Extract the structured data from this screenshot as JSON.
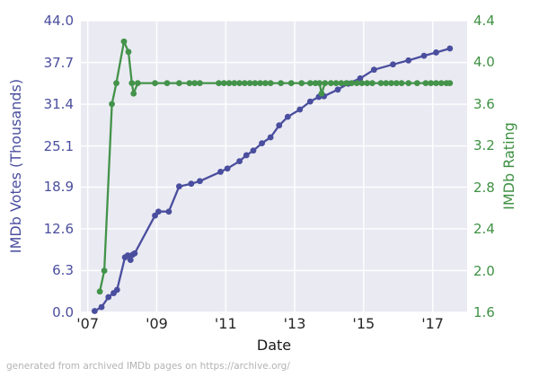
{
  "caption": "generated from archived IMDb pages on https://archive.org/",
  "chart_data": {
    "type": "line",
    "xlabel": "Date",
    "ylabel_left": "IMDb Votes (Thousands)",
    "ylabel_right": "IMDb Rating",
    "grid": true,
    "legend": "none",
    "plot_bg": "#eaeaf2",
    "grid_color": "#ffffff",
    "x_range": [
      2006.8,
      2018.0
    ],
    "x_tick_labels": [
      "'07",
      "'09",
      "'11",
      "'13",
      "'15",
      "'17"
    ],
    "x_tick_values": [
      2007,
      2009,
      2011,
      2013,
      2015,
      2017
    ],
    "left_axis": {
      "range": [
        0.0,
        44.0
      ],
      "tick_labels": [
        "0.0",
        "6.3",
        "12.6",
        "18.9",
        "25.1",
        "31.4",
        "37.7",
        "44.0"
      ],
      "tick_values": [
        0.0,
        6.3,
        12.6,
        18.9,
        25.1,
        31.4,
        37.7,
        44.0
      ],
      "color": "#4a4e9e"
    },
    "right_axis": {
      "range": [
        1.6,
        4.4
      ],
      "tick_labels": [
        "1.6",
        "2.0",
        "2.4",
        "2.8",
        "3.2",
        "3.6",
        "4.0",
        "4.4"
      ],
      "tick_values": [
        1.6,
        2.0,
        2.4,
        2.8,
        3.2,
        3.6,
        4.0,
        4.4
      ],
      "color": "#3f9143"
    },
    "series": [
      {
        "name": "IMDb Votes (Thousands)",
        "axis": "left",
        "color": "#4a4e9e",
        "points": [
          [
            2007.2,
            0.2
          ],
          [
            2007.4,
            0.8
          ],
          [
            2007.6,
            2.3
          ],
          [
            2007.75,
            2.9
          ],
          [
            2007.85,
            3.4
          ],
          [
            2008.08,
            8.3
          ],
          [
            2008.16,
            8.6
          ],
          [
            2008.24,
            7.9
          ],
          [
            2008.3,
            8.7
          ],
          [
            2008.36,
            8.9
          ],
          [
            2008.95,
            14.6
          ],
          [
            2009.05,
            15.2
          ],
          [
            2009.35,
            15.2
          ],
          [
            2009.65,
            19.0
          ],
          [
            2010.0,
            19.4
          ],
          [
            2010.25,
            19.8
          ],
          [
            2010.85,
            21.2
          ],
          [
            2011.05,
            21.7
          ],
          [
            2011.4,
            22.8
          ],
          [
            2011.6,
            23.7
          ],
          [
            2011.8,
            24.4
          ],
          [
            2012.05,
            25.5
          ],
          [
            2012.3,
            26.4
          ],
          [
            2012.55,
            28.2
          ],
          [
            2012.8,
            29.5
          ],
          [
            2013.15,
            30.6
          ],
          [
            2013.45,
            31.8
          ],
          [
            2013.7,
            32.5
          ],
          [
            2013.85,
            32.6
          ],
          [
            2014.25,
            33.6
          ],
          [
            2014.55,
            34.5
          ],
          [
            2014.9,
            35.3
          ],
          [
            2015.3,
            36.6
          ],
          [
            2015.85,
            37.4
          ],
          [
            2016.3,
            38.0
          ],
          [
            2016.75,
            38.7
          ],
          [
            2017.1,
            39.2
          ],
          [
            2017.5,
            39.8
          ]
        ]
      },
      {
        "name": "IMDb Rating",
        "axis": "right",
        "color": "#43934a",
        "points": [
          [
            2007.35,
            1.8
          ],
          [
            2007.48,
            2.0
          ],
          [
            2007.7,
            3.6
          ],
          [
            2007.83,
            3.8
          ],
          [
            2008.05,
            4.2
          ],
          [
            2008.18,
            4.1
          ],
          [
            2008.28,
            3.8
          ],
          [
            2008.33,
            3.7
          ],
          [
            2008.45,
            3.8
          ],
          [
            2008.95,
            3.8
          ],
          [
            2009.3,
            3.8
          ],
          [
            2009.65,
            3.8
          ],
          [
            2009.95,
            3.8
          ],
          [
            2010.1,
            3.8
          ],
          [
            2010.25,
            3.8
          ],
          [
            2010.8,
            3.8
          ],
          [
            2010.95,
            3.8
          ],
          [
            2011.1,
            3.8
          ],
          [
            2011.25,
            3.8
          ],
          [
            2011.4,
            3.8
          ],
          [
            2011.55,
            3.8
          ],
          [
            2011.7,
            3.8
          ],
          [
            2011.85,
            3.8
          ],
          [
            2012.0,
            3.8
          ],
          [
            2012.15,
            3.8
          ],
          [
            2012.3,
            3.8
          ],
          [
            2012.6,
            3.8
          ],
          [
            2012.9,
            3.8
          ],
          [
            2013.2,
            3.8
          ],
          [
            2013.45,
            3.8
          ],
          [
            2013.6,
            3.8
          ],
          [
            2013.72,
            3.8
          ],
          [
            2013.78,
            3.7
          ],
          [
            2013.88,
            3.8
          ],
          [
            2014.05,
            3.8
          ],
          [
            2014.2,
            3.8
          ],
          [
            2014.35,
            3.8
          ],
          [
            2014.5,
            3.8
          ],
          [
            2014.65,
            3.8
          ],
          [
            2014.8,
            3.8
          ],
          [
            2014.95,
            3.8
          ],
          [
            2015.1,
            3.8
          ],
          [
            2015.25,
            3.8
          ],
          [
            2015.5,
            3.8
          ],
          [
            2015.65,
            3.8
          ],
          [
            2015.8,
            3.8
          ],
          [
            2015.95,
            3.8
          ],
          [
            2016.1,
            3.8
          ],
          [
            2016.3,
            3.8
          ],
          [
            2016.55,
            3.8
          ],
          [
            2016.8,
            3.8
          ],
          [
            2016.95,
            3.8
          ],
          [
            2017.1,
            3.8
          ],
          [
            2017.25,
            3.8
          ],
          [
            2017.4,
            3.8
          ],
          [
            2017.5,
            3.8
          ]
        ]
      }
    ]
  }
}
